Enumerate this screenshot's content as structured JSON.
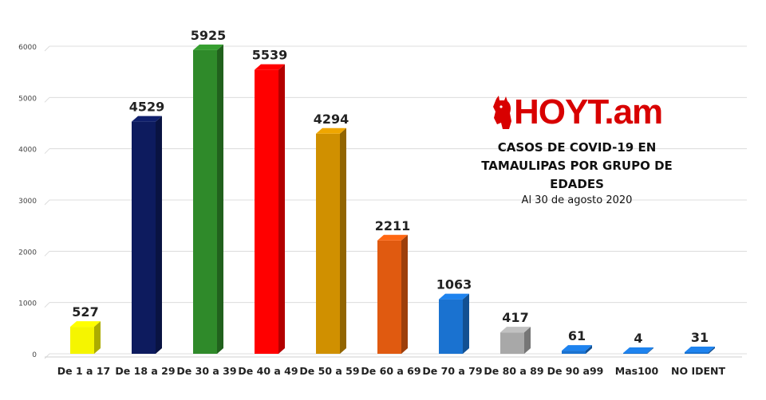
{
  "logo": {
    "text": "HOYT.am"
  },
  "chart_data": {
    "type": "bar",
    "title": "CASOS DE COVID-19 EN TAMAULIPAS POR GRUPO DE EDADES",
    "subtitle": "Al 30 de agosto 2020",
    "categories": [
      "De 1 a 17",
      "De 18 a 29",
      "De 30 a 39",
      "De 40 a 49",
      "De 50 a 59",
      "De 60 a 69",
      "De 70 a 79",
      "De 80 a 89",
      "De 90 a99",
      "Mas100",
      "NO IDENT"
    ],
    "values": [
      527,
      4529,
      5925,
      5539,
      4294,
      2211,
      1063,
      417,
      61,
      4,
      31
    ],
    "colors": [
      "#f5f500",
      "#0d1b5e",
      "#2f8a2a",
      "#ff0000",
      "#d09000",
      "#e05a10",
      "#1a72d0",
      "#a8a8a8",
      "#1a72d0",
      "#1a72d0",
      "#1a72d0"
    ],
    "y_ticks": [
      0,
      1000,
      2000,
      3000,
      4000,
      5000,
      6000
    ],
    "ylim": [
      0,
      6000
    ],
    "grid": true,
    "legend": "none",
    "xlabel": "",
    "ylabel": ""
  }
}
